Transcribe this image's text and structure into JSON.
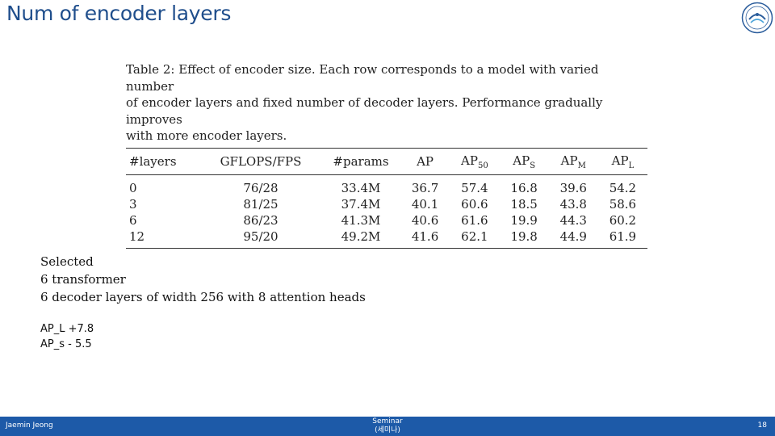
{
  "slide": {
    "title": "Num of encoder layers"
  },
  "table": {
    "caption_lines": [
      "Table 2: Effect of encoder size. Each row corresponds to a model with varied number",
      "of encoder layers and fixed number of decoder layers. Performance gradually improves",
      "with more encoder layers."
    ],
    "headers": {
      "layers": "#layers",
      "gflops": "GFLOPS/FPS",
      "params": "#params",
      "ap": "AP",
      "ap50_base": "AP",
      "ap50_sub": "50",
      "aps_base": "AP",
      "aps_sub": "S",
      "apm_base": "AP",
      "apm_sub": "M",
      "apl_base": "AP",
      "apl_sub": "L"
    },
    "rows": [
      [
        "0",
        "76/28",
        "33.4M",
        "36.7",
        "57.4",
        "16.8",
        "39.6",
        "54.2"
      ],
      [
        "3",
        "81/25",
        "37.4M",
        "40.1",
        "60.6",
        "18.5",
        "43.8",
        "58.6"
      ],
      [
        "6",
        "86/23",
        "41.3M",
        "40.6",
        "61.6",
        "19.9",
        "44.3",
        "60.2"
      ],
      [
        "12",
        "95/20",
        "49.2M",
        "41.6",
        "62.1",
        "19.8",
        "44.9",
        "61.9"
      ]
    ]
  },
  "notes": {
    "lines": [
      "Selected",
      "6 transformer",
      "6 decoder layers of width 256 with 8 attention heads"
    ],
    "metrics": [
      "AP_L +7.8",
      "AP_s - 5.5"
    ]
  },
  "footer": {
    "author": "Jaemin Jeong",
    "center_line1": "Seminar",
    "center_line2": "(세미나)",
    "page": "18"
  }
}
